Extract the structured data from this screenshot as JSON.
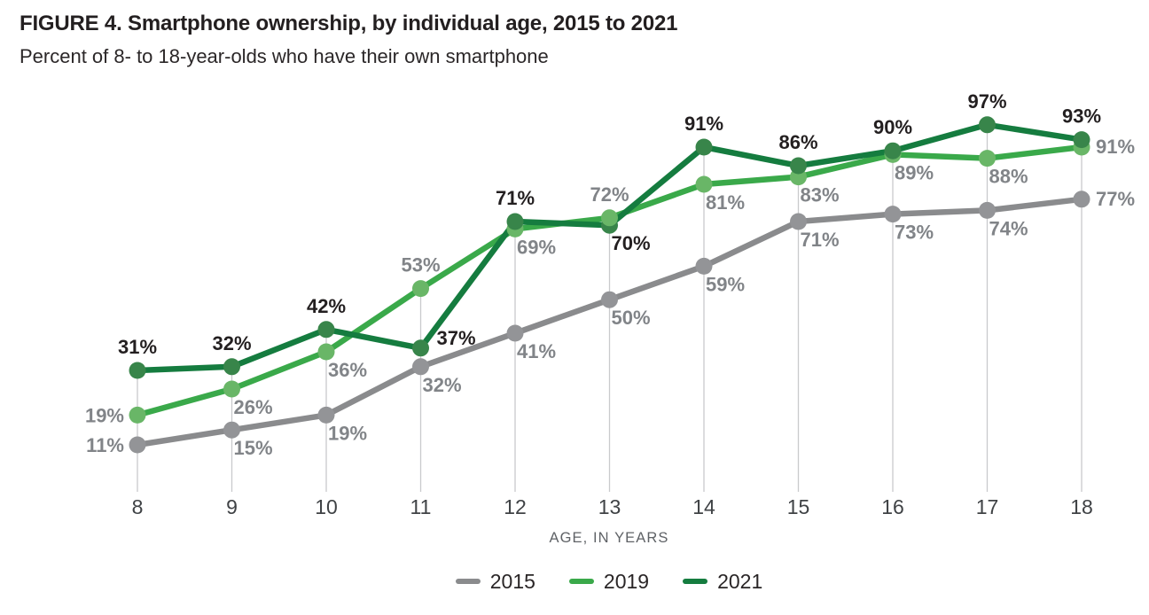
{
  "chart_data": {
    "type": "line",
    "title": "FIGURE 4. Smartphone ownership, by individual age, 2015 to 2021",
    "subtitle": "Percent of 8- to 18-year-olds who have their own smartphone",
    "xlabel": "AGE, IN YEARS",
    "x": [
      8,
      9,
      10,
      11,
      12,
      13,
      14,
      15,
      16,
      17,
      18
    ],
    "x_tick_labels": [
      "8",
      "9",
      "10",
      "11",
      "12",
      "13",
      "14",
      "15",
      "16",
      "17",
      "18"
    ],
    "ylim": [
      0,
      100
    ],
    "value_suffix": "%",
    "grid": "vertical light-gray guide line at each age, from topmost data point down to baseline; no y-axis, no horizontal gridlines",
    "legend_position": "bottom-center",
    "gridline_color": "#c9cacc",
    "tick_label_color": "#3f4245",
    "series": [
      {
        "name": "2015",
        "color": "#8a8b8d",
        "marker_color": "#939497",
        "label_color": "#818488",
        "values": [
          11,
          15,
          19,
          32,
          41,
          50,
          59,
          71,
          73,
          74,
          77
        ],
        "labels": [
          "11%",
          "15%",
          "19%",
          "32%",
          "41%",
          "50%",
          "59%",
          "71%",
          "73%",
          "74%",
          "77%"
        ],
        "label_pos": [
          "left",
          "below-right",
          "below-right",
          "below-right",
          "below-right",
          "below-right",
          "below-right",
          "below-right",
          "below-right",
          "below-right",
          "right"
        ]
      },
      {
        "name": "2019",
        "color": "#3aa94a",
        "marker_color": "#69b667",
        "label_color": "#818488",
        "values": [
          19,
          26,
          36,
          53,
          69,
          72,
          81,
          83,
          89,
          88,
          91
        ],
        "labels": [
          "19%",
          "26%",
          "36%",
          "53%",
          "69%",
          "72%",
          "81%",
          "83%",
          "89%",
          "88%",
          "91%"
        ],
        "label_pos": [
          "left",
          "below-right",
          "below-right",
          "above",
          "below-right",
          "above",
          "below-right",
          "below-right",
          "below-right",
          "below-right",
          "right"
        ]
      },
      {
        "name": "2021",
        "color": "#157c3f",
        "marker_color": "#38854a",
        "label_color": "#231f20",
        "values": [
          31,
          32,
          42,
          37,
          71,
          70,
          91,
          86,
          90,
          97,
          93
        ],
        "labels": [
          "31%",
          "32%",
          "42%",
          "37%",
          "71%",
          "70%",
          "91%",
          "86%",
          "90%",
          "97%",
          "93%"
        ],
        "label_pos": [
          "above",
          "above",
          "above",
          "right-up",
          "above",
          "below-right",
          "above",
          "above",
          "above",
          "above",
          "above"
        ]
      }
    ]
  }
}
